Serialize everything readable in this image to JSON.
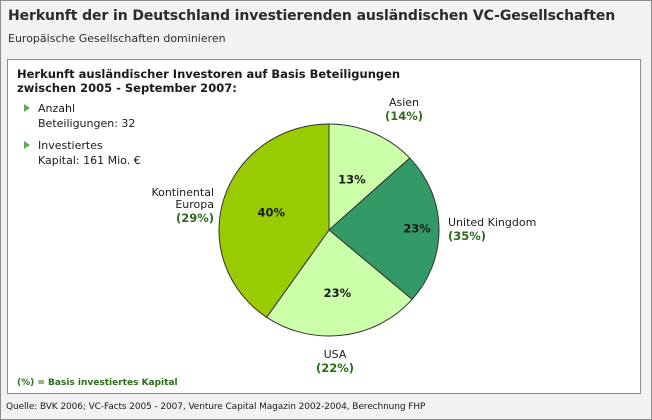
{
  "title": "Herkunft der in Deutschland investierenden ausländischen VC-Gesellschaften",
  "subtitle": "Europäische Gesellschaften dominieren",
  "chart_title_line1": "Herkunft ausländischer Investoren auf Basis Beteiligungen",
  "chart_title_line2": "zwischen 2005 - September 2007:",
  "stats": [
    {
      "line1": "Anzahl",
      "line2": "Beteiligungen: 32"
    },
    {
      "line1": "Investiertes",
      "line2": "Kapital: 161 Mio. €"
    }
  ],
  "footnote": "(%) = Basis investiertes Kapital",
  "source": "Quelle: BVK 2006; VC-Facts 2005 - 2007, Venture Capital Magazin 2002-2004, Berechnung FHP",
  "colors": {
    "continental": "#99cc00",
    "asia": "#ccffaa",
    "uk": "#339966",
    "usa": "#ccffaa",
    "stroke": "#333333",
    "capital_label": "#2e6b1b",
    "bullet": "#5fa75f"
  },
  "chart_data": {
    "type": "pie",
    "title": "Herkunft ausländischer Investoren auf Basis Beteiligungen zwischen 2005 - September 2007:",
    "slices": [
      {
        "name": "Asien",
        "value": 13,
        "value_label": "13%",
        "capital_label": "(14%)",
        "capital": 14,
        "color": "#ccffaa"
      },
      {
        "name": "United Kingdom",
        "value": 23,
        "value_label": "23%",
        "capital_label": "(35%)",
        "capital": 35,
        "color": "#339966"
      },
      {
        "name": "USA",
        "value": 23,
        "value_label": "23%",
        "capital_label": "(22%)",
        "capital": 22,
        "color": "#ccffaa"
      },
      {
        "name": "Kontinental Europa",
        "name_lines": [
          "Kontinental",
          "Europa"
        ],
        "value": 40,
        "value_label": "40%",
        "capital_label": "(29%)",
        "capital": 29,
        "color": "#99cc00"
      }
    ]
  }
}
